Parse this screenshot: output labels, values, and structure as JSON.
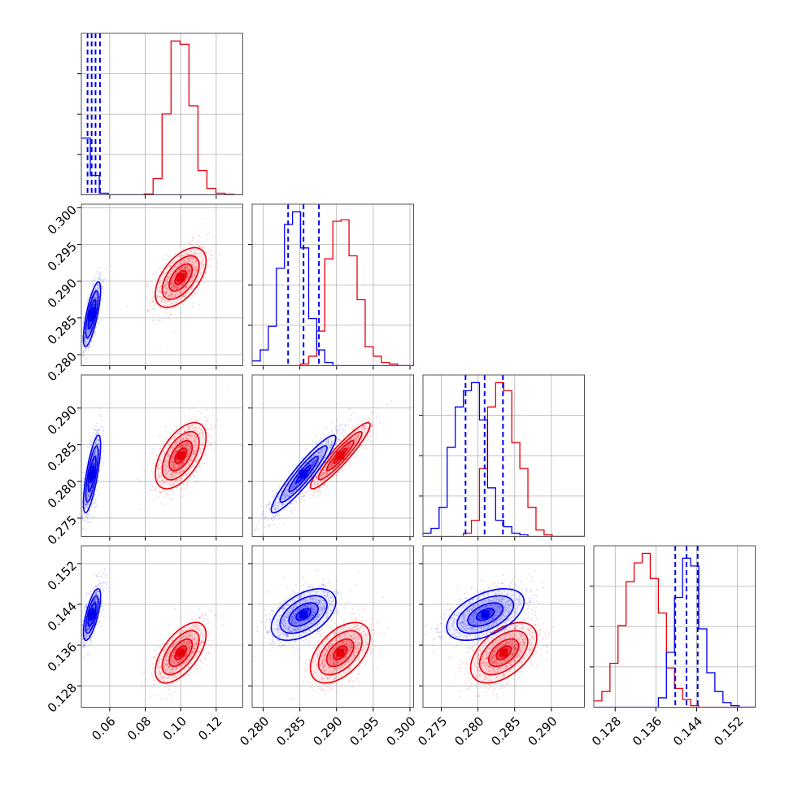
{
  "figure": {
    "kind": "corner plot",
    "background": "#ffffff"
  },
  "colors": {
    "red": "#e8000b",
    "blue": "#0000ee",
    "grid": "#b0b0b0",
    "frame": "#555555"
  },
  "chart_data": {
    "type": "corner",
    "parameters": [
      {
        "range": [
          0.044,
          0.135
        ],
        "ticks": [
          0.06,
          0.08,
          0.1,
          0.12
        ],
        "tick_labels": [
          "0.06",
          "0.08",
          "0.10",
          "0.12"
        ]
      },
      {
        "range": [
          0.2785,
          0.3005
        ],
        "ticks": [
          0.28,
          0.285,
          0.29,
          0.295,
          0.3
        ],
        "tick_labels": [
          "0.280",
          "0.285",
          "0.290",
          "0.295",
          "0.300"
        ]
      },
      {
        "range": [
          0.2725,
          0.2945
        ],
        "ticks": [
          0.275,
          0.28,
          0.285,
          0.29
        ],
        "tick_labels": [
          "0.275",
          "0.280",
          "0.285",
          "0.290"
        ]
      },
      {
        "range": [
          0.1238,
          0.1555
        ],
        "ticks": [
          0.128,
          0.136,
          0.144,
          0.152
        ],
        "tick_labels": [
          "0.128",
          "0.136",
          "0.144",
          "0.152"
        ]
      }
    ],
    "grid": true,
    "series": [
      {
        "color": "#e8000b",
        "means": [
          0.1,
          0.2905,
          0.2835,
          0.1345
        ],
        "sds": [
          0.0065,
          0.00185,
          0.00205,
          0.0027
        ],
        "correlations": [
          [
            0,
            1,
            0.55
          ],
          [
            0,
            2,
            0.55
          ],
          [
            0,
            3,
            0.6
          ],
          [
            1,
            2,
            0.93
          ],
          [
            1,
            3,
            0.5
          ],
          [
            2,
            3,
            0.5
          ]
        ],
        "quantile_lines": []
      },
      {
        "color": "#0000ee",
        "means": [
          0.05,
          0.2855,
          0.281,
          0.142
        ],
        "sds": [
          0.0022,
          0.002,
          0.0024,
          0.0023
        ],
        "correlations": [
          [
            0,
            1,
            0.75
          ],
          [
            0,
            2,
            0.75
          ],
          [
            0,
            3,
            0.7
          ],
          [
            1,
            2,
            0.93
          ],
          [
            1,
            3,
            0.5
          ],
          [
            2,
            3,
            0.5
          ]
        ],
        "quantile_lines": [
          [
            0.0475,
            0.0498,
            0.052,
            0.0545
          ],
          [
            0.2834,
            0.2855,
            0.2876
          ],
          [
            0.2783,
            0.2809,
            0.2834
          ],
          [
            0.1398,
            0.142,
            0.1442
          ]
        ]
      }
    ],
    "histograms": {
      "0": {
        "bins": [
          0.044,
          0.135,
          18
        ],
        "series": [
          [
            0,
            0,
            0,
            0,
            0,
            0,
            0,
            0.005,
            0.1,
            0.5,
            0.95,
            0.93,
            0.55,
            0.15,
            0.04,
            0.01,
            0.003,
            0
          ],
          [
            0.35,
            0.12,
            0.01,
            0,
            0,
            0,
            0,
            0,
            0,
            0,
            0,
            0,
            0,
            0,
            0,
            0,
            0,
            0
          ]
        ]
      },
      "1": {
        "bins": [
          0.2785,
          0.3005,
          20
        ],
        "series": [
          [
            0,
            0,
            0,
            0,
            0,
            0,
            0.01,
            0.06,
            0.22,
            0.68,
            0.92,
            0.93,
            0.7,
            0.42,
            0.12,
            0.06,
            0.02,
            0.01,
            0,
            0
          ],
          [
            0.03,
            0.1,
            0.25,
            0.62,
            0.9,
            0.98,
            0.75,
            0.3,
            0.1,
            0.02,
            0,
            0,
            0,
            0,
            0,
            0,
            0,
            0,
            0,
            0
          ]
        ]
      },
      "2": {
        "bins": [
          0.2725,
          0.2945,
          20
        ],
        "series": [
          [
            0,
            0,
            0,
            0,
            0,
            0.02,
            0.1,
            0.42,
            0.8,
            0.95,
            0.9,
            0.58,
            0.42,
            0.18,
            0.04,
            0.01,
            0,
            0,
            0,
            0
          ],
          [
            0.02,
            0.05,
            0.18,
            0.55,
            0.8,
            0.9,
            0.95,
            0.72,
            0.3,
            0.1,
            0.06,
            0.02,
            0.01,
            0,
            0,
            0,
            0,
            0,
            0,
            0
          ]
        ]
      },
      "3": {
        "bins": [
          0.1238,
          0.1555,
          20
        ],
        "series": [
          [
            0.04,
            0.1,
            0.28,
            0.52,
            0.8,
            0.92,
            0.98,
            0.82,
            0.6,
            0.25,
            0.12,
            0.05,
            0.01,
            0,
            0,
            0,
            0,
            0,
            0,
            0
          ],
          [
            0,
            0,
            0,
            0,
            0,
            0,
            0,
            0,
            0.06,
            0.35,
            0.7,
            0.95,
            0.9,
            0.5,
            0.22,
            0.1,
            0.03,
            0.01,
            0,
            0
          ]
        ]
      }
    }
  }
}
